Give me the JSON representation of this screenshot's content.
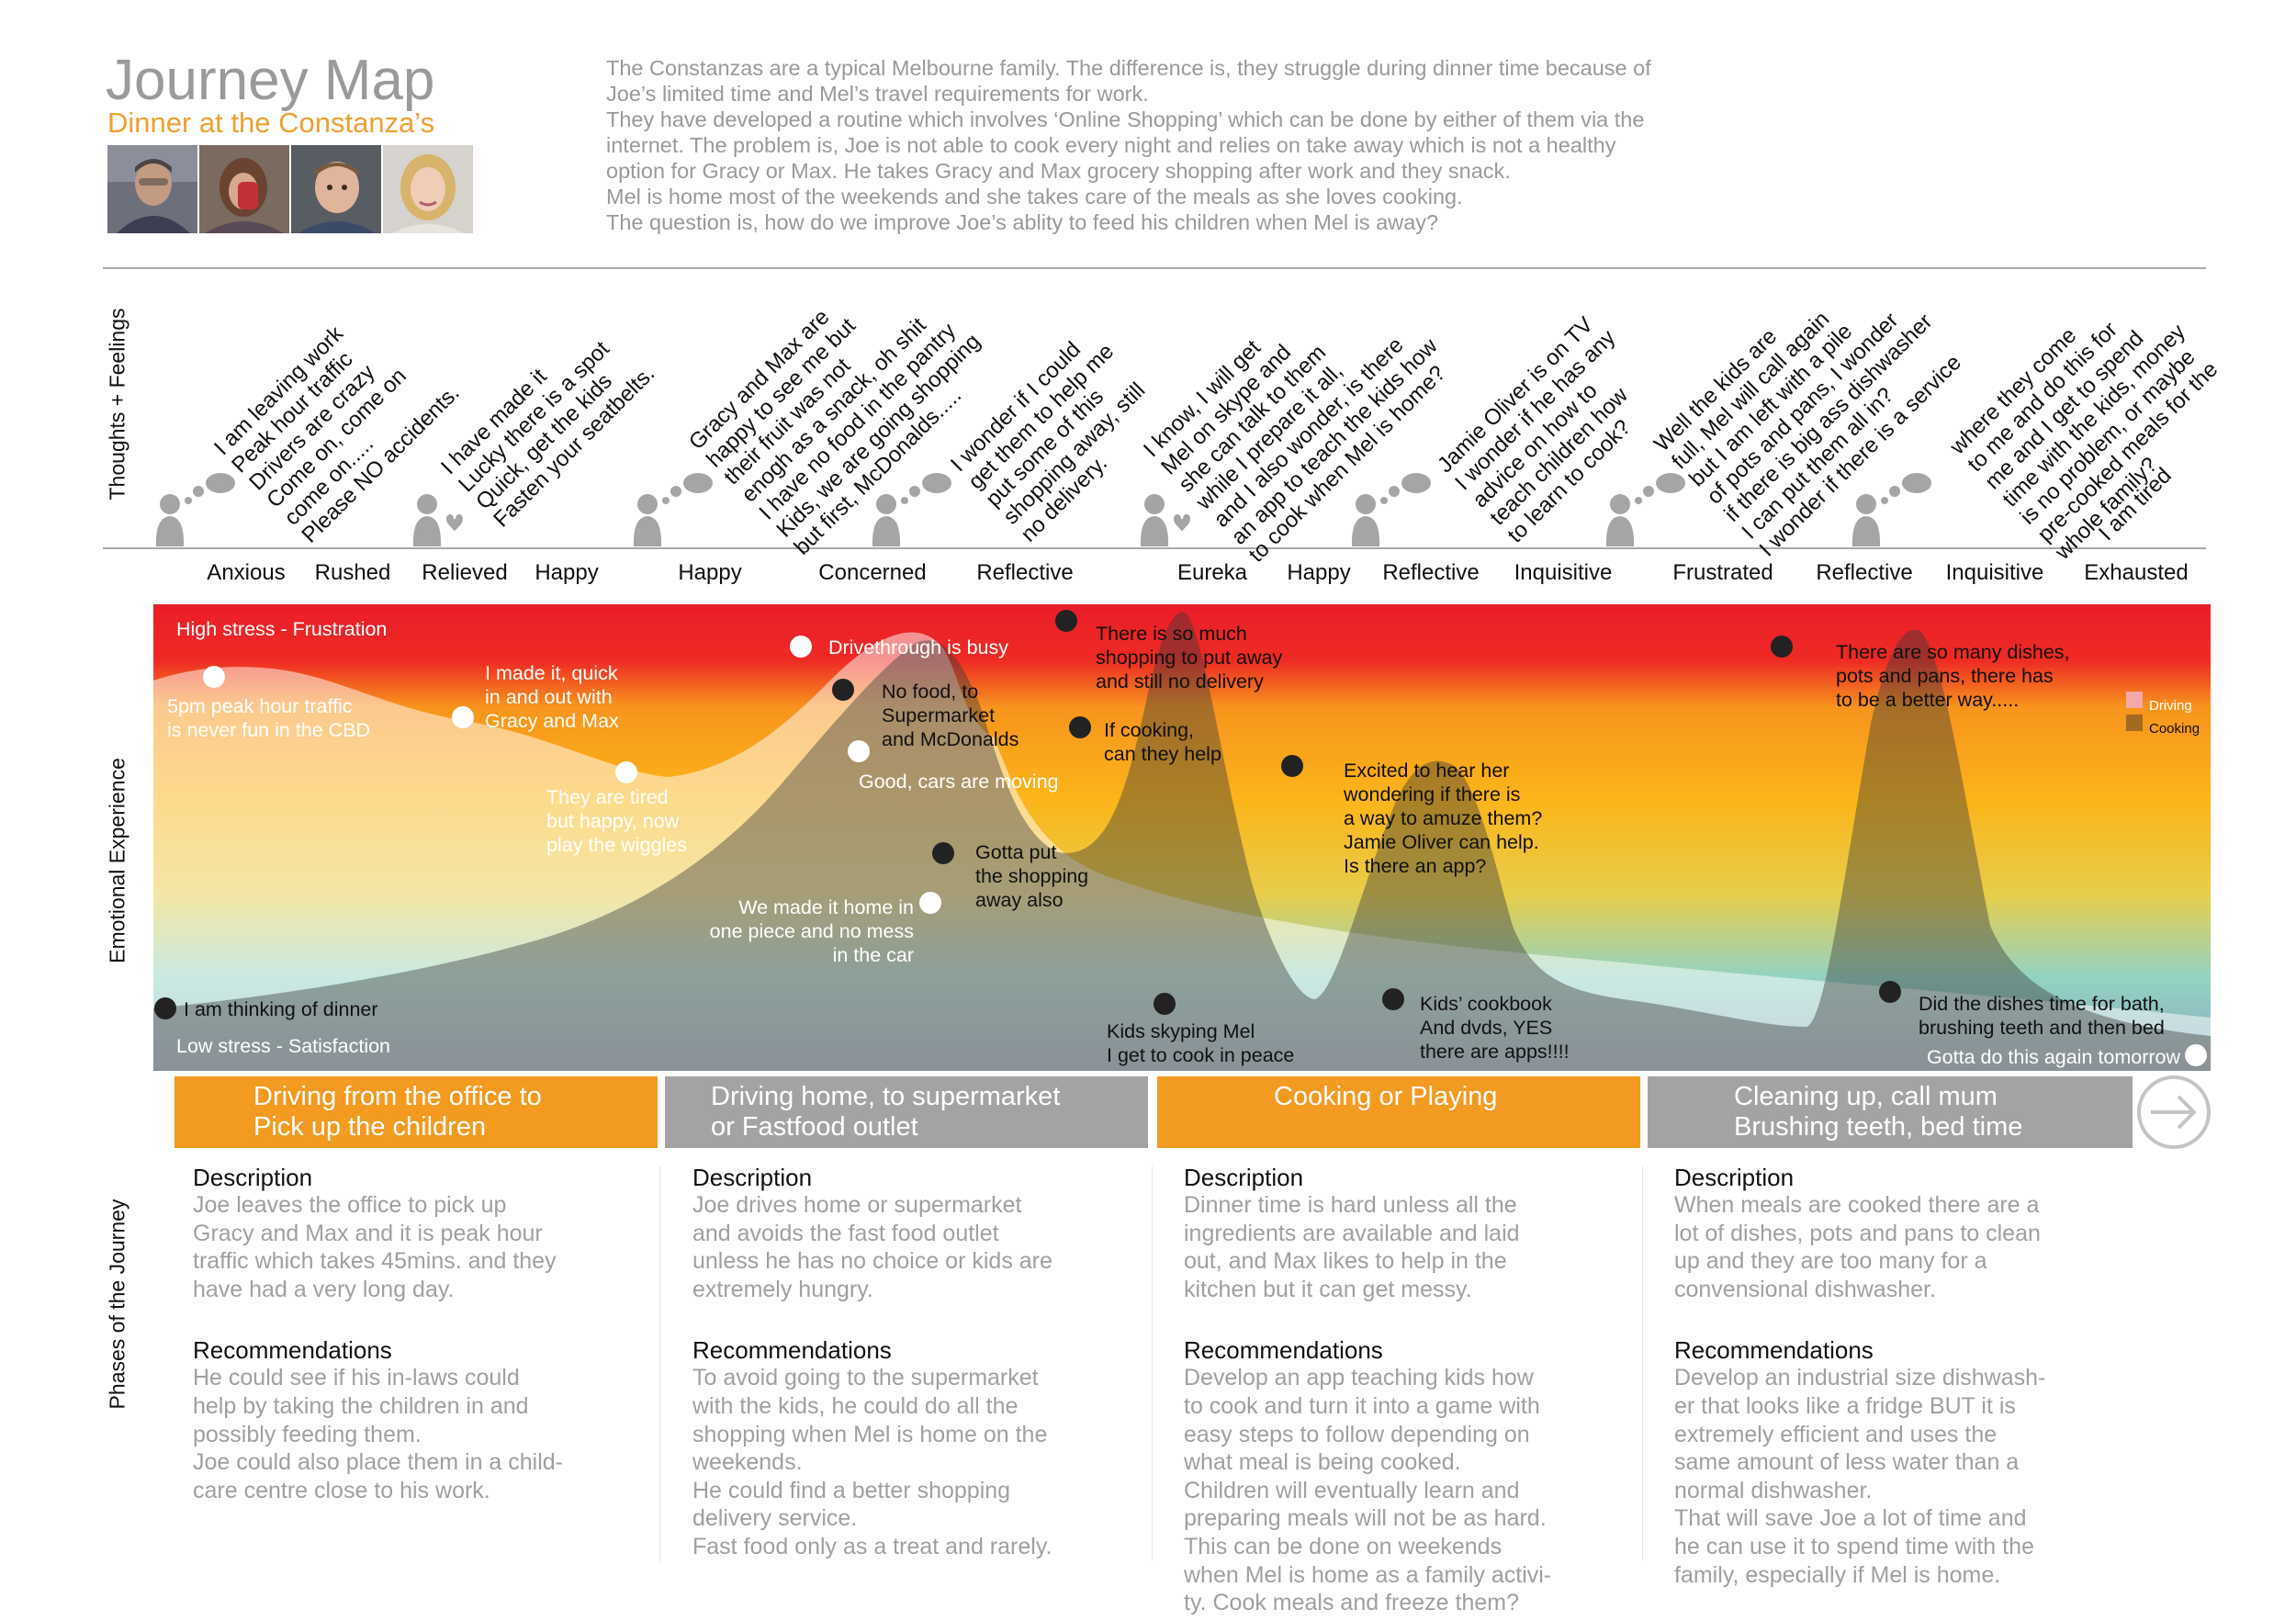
{
  "header": {
    "title": "Journey Map",
    "subtitle": "Dinner at the Constanza’s",
    "intro": [
      "The Constanzas are a typical Melbourne family. The difference is, they struggle during dinner time because of",
      "Joe’s limited time and Mel’s travel requirements for work.",
      "They have developed a routine which involves ‘Online Shopping’ which can be done by either of them via the",
      "internet. The problem is, Joe is not able to cook every night and relies on take away which is not a healthy",
      "option for Gracy or Max. He takes Gracy and Max grocery shopping after work and they snack.",
      "Mel is home most of the weekends and she takes care of the meals as she loves cooking.",
      "The question is, how do we improve Joe’s ablity to feed his children when Mel is away?"
    ],
    "photos": [
      "father",
      "daughter",
      "son",
      "mother"
    ]
  },
  "axis_labels": {
    "thoughts": "Thoughts + Feelings",
    "emotional": "Emotional Experience",
    "phases": "Phases of the Journey"
  },
  "thoughts": [
    {
      "text": "I am leaving work\nPeak hour traffic\nDrivers are crazy\nCome on, come on\ncome on.....\nPlease NO accidents.",
      "icon": "thinking"
    },
    {
      "text": "I have made it\nLucky there is a spot\nQuick, get the kids\nFasten your seatbelts.",
      "icon": "heart"
    },
    {
      "text": "Gracy and Max are\nhappy to see me but\ntheir fruit was not\nenogh as a snack, oh shit\nI have no food in the pantry\nKids, we are going shopping\nbut first, McDonalds.....",
      "icon": "thinking"
    },
    {
      "text": "I wonder if I could\nget them to help me\nput some of this\nshopping away, still\nno delivery.",
      "icon": "thinking"
    },
    {
      "text": "I know, I will get\nMel on skype and\nshe can talk to them\nwhile I prepare it all,\nand I also wonder, is there\nan app to teach the kids how\nto cook when Mel is home?",
      "icon": "heart"
    },
    {
      "text": "Jamie Oliver is on TV\nI wonder if he has any\nadvice on how to\nteach children how\nto learn to cook?",
      "icon": "thinking"
    },
    {
      "text": "Well the kids are\nfull, Mel will call again\nbut I am left with a pile\nof pots and pans, I wonder\nif there is big ass dishwasher\nI can put them all in?\nI wonder if there is a service",
      "icon": "thinking"
    },
    {
      "text": "where they come\nto me and do this for\nme and I get to spend\ntime with the kids, money\nis no problem, or maybe\npre-cooked meals for the\nwhole family?",
      "icon": "thinking"
    },
    {
      "text": "I am tired",
      "icon": "none"
    }
  ],
  "emotions": [
    "Anxious",
    "Rushed",
    "Relieved",
    "Happy",
    "Happy",
    "Concerned",
    "Reflective",
    "Eureka",
    "Happy",
    "Reflective",
    "Inquisitive",
    "Frustrated",
    "Reflective",
    "Inquisitive",
    "Exhausted"
  ],
  "chart_data": {
    "type": "area",
    "y_scale": [
      "Low stress - Satisfaction",
      "High stress - Frustration"
    ],
    "top_label": "High stress - Frustration",
    "bottom_label": "Low stress - Satisfaction",
    "series": [
      {
        "name": "Driving",
        "color": "#f5a7a9"
      },
      {
        "name": "Cooking",
        "color": "#a46a22"
      }
    ],
    "annotations": [
      {
        "text": "I am thinking of dinner",
        "series": "Cooking"
      },
      {
        "text": "5pm peak hour traffic\nis never fun in the CBD",
        "series": "Driving"
      },
      {
        "text": "I made it, quick\nin and out with\nGracy and Max",
        "series": "Driving"
      },
      {
        "text": "They are tired\nbut happy, now\nplay the wiggles",
        "series": "Driving"
      },
      {
        "text": "Drivethrough is busy",
        "series": "Driving"
      },
      {
        "text": "No food, to\nSupermarket\nand McDonalds",
        "series": "Cooking"
      },
      {
        "text": "Good, cars are moving",
        "series": "Driving"
      },
      {
        "text": "We made it home in\none piece and no mess\nin the car",
        "series": "Driving"
      },
      {
        "text": "Gotta put\nthe shopping\naway also",
        "series": "Cooking"
      },
      {
        "text": "There is so much\nshopping to put away\nand still no delivery",
        "series": "Cooking"
      },
      {
        "text": "If cooking,\ncan they help",
        "series": "Cooking"
      },
      {
        "text": "Kids skyping Mel\nI get to cook in peace",
        "series": "Cooking"
      },
      {
        "text": "Excited to hear her\nwondering if there is\na way to amuze them?\nJamie Oliver can help.\nIs there an app?",
        "series": "Cooking"
      },
      {
        "text": "Kids’ cookbook\nAnd dvds, YES\nthere are apps!!!!",
        "series": "Cooking"
      },
      {
        "text": "There are so many dishes,\npots and pans, there has\nto be a better way.....",
        "series": "Cooking"
      },
      {
        "text": "Did the dishes time for bath,\nbrushing teeth and then bed",
        "series": "Cooking"
      },
      {
        "text": "Gotta do this again tomorrow",
        "series": "Driving"
      }
    ]
  },
  "phases": [
    {
      "title": "Driving from the office to\nPick up the children",
      "color": "#f39a21",
      "desc_heading": "Description",
      "desc": "Joe leaves the office to pick up\nGracy and Max and it is peak hour\ntraffic which takes 45mins. and they\nhave had a very long day.",
      "rec_heading": "Recommendations",
      "rec": "He could see if his in-laws could\nhelp by taking the children in and\npossibly feeding them.\nJoe could also place them in a child-\ncare centre close to his work."
    },
    {
      "title": "Driving home, to supermarket\nor Fastfood outlet",
      "color": "#a3a3a6",
      "desc_heading": "Description",
      "desc": "Joe drives home or supermarket\nand avoids the fast food outlet\nunless he has no choice or kids are\nextremely hungry.",
      "rec_heading": "Recommendations",
      "rec": "To avoid going to the supermarket\nwith the kids, he could do all the\nshopping when Mel is home on the\nweekends.\nHe could find a better shopping\ndelivery service.\nFast food only as a treat and rarely."
    },
    {
      "title": "Cooking or Playing",
      "color": "#f39a21",
      "desc_heading": "Description",
      "desc": "Dinner time is hard unless all the\ningredients are available and laid\nout, and Max likes to help in the\nkitchen but it can get messy.",
      "rec_heading": "Recommendations",
      "rec": "Develop an app teaching kids how\nto cook and turn it into a game with\neasy steps to follow depending on\nwhat meal is being cooked.\nChildren will eventually learn and\npreparing meals will not be as hard.\nThis can be done on weekends\nwhen Mel is home as a family activi-\nty. Cook meals and freeze them?"
    },
    {
      "title": "Cleaning up, call mum\nBrushing teeth, bed time",
      "color": "#a3a3a6",
      "desc_heading": "Description",
      "desc": "When meals are cooked there are a\nlot of dishes, pots and pans to clean\nup and they are too many for a\nconvensional dishwasher.",
      "rec_heading": "Recommendations",
      "rec": "Develop an industrial size dishwash-\ner that looks like a fridge BUT it is\nextremely efficient and uses the\nsame amount of less water than a\nnormal dishwasher.\nThat will save Joe a lot of time and\nhe can use it to spend time with the\nfamily, especially if Mel is home."
    }
  ],
  "next_button": "arrow-right-circle-icon"
}
